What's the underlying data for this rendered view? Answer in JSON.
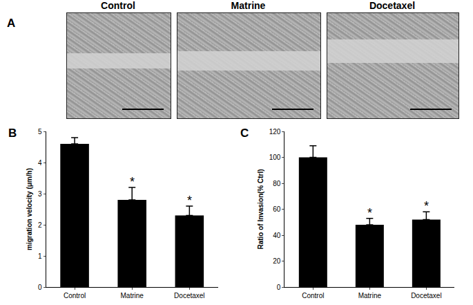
{
  "panel_a": {
    "label": "A",
    "images": [
      "Control",
      "Matrine",
      "Docetaxel"
    ]
  },
  "chart_data": [
    {
      "type": "bar",
      "panel": "B",
      "categories": [
        "Control",
        "Matrine",
        "Docetaxel"
      ],
      "values": [
        4.6,
        2.8,
        2.3
      ],
      "errors": [
        0.2,
        0.4,
        0.3
      ],
      "significance": [
        null,
        "*",
        "*"
      ],
      "color": "#000000",
      "y_label": "migration velocity (μm/h)",
      "ylim": [
        0,
        5
      ],
      "yticks": [
        0,
        1,
        2,
        3,
        4,
        5
      ],
      "grid": false
    },
    {
      "type": "bar",
      "panel": "C",
      "categories": [
        "Control",
        "Matrine",
        "Docetaxel"
      ],
      "values": [
        100,
        48,
        52
      ],
      "errors": [
        9,
        5,
        6
      ],
      "significance": [
        null,
        "*",
        "*"
      ],
      "color": "#000000",
      "y_label": "Ratio of Invasion(% Ctrl)",
      "ylim": [
        0,
        120
      ],
      "yticks": [
        0,
        20,
        40,
        60,
        80,
        100,
        120
      ],
      "grid": false
    }
  ]
}
